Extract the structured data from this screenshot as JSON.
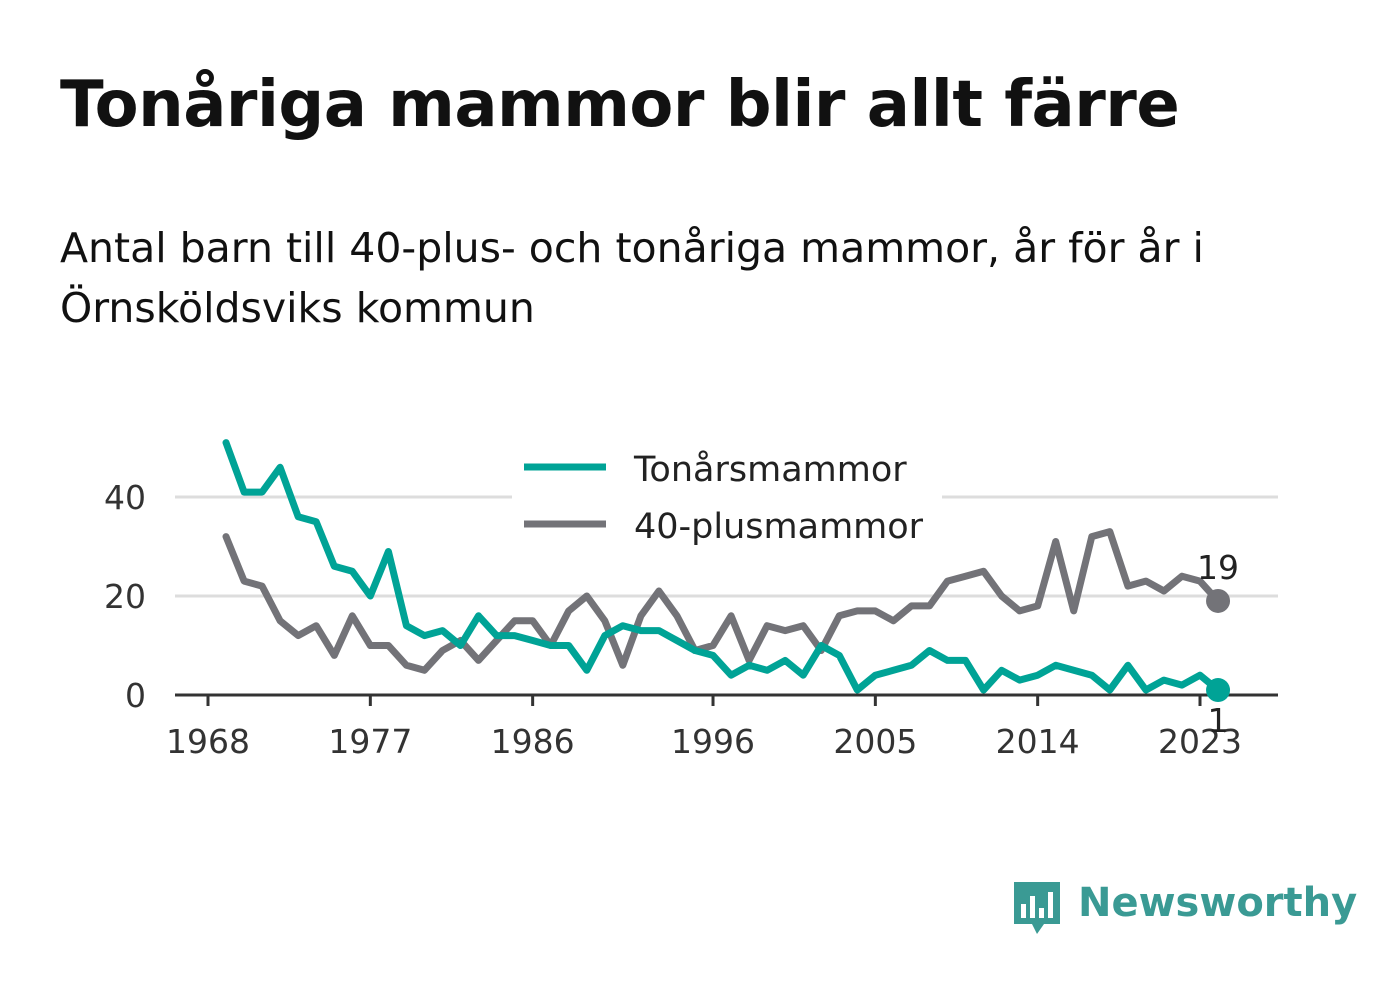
{
  "header": {
    "title": "Tonåriga mammor blir allt färre",
    "subtitle": "Antal barn till 40-plus- och tonåriga mammor, år för år i Örnsköldsviks kommun"
  },
  "brand": {
    "name": "Newsworthy",
    "color": "#3a9a94",
    "icon": "bar-chart-speech-bubble-icon"
  },
  "chart_data": {
    "type": "line",
    "title": "Tonåriga mammor blir allt färre",
    "subtitle": "Antal barn till 40-plus- och tonåriga mammor, år för år i Örnsköldsviks kommun",
    "xlabel": "",
    "ylabel": "",
    "xlim": [
      1968,
      2027
    ],
    "ylim": [
      0,
      51
    ],
    "xticks": [
      1968,
      1977,
      1986,
      1996,
      2005,
      2014,
      2023
    ],
    "yticks": [
      0,
      20,
      40
    ],
    "grid": "horizontal",
    "legend_position": "top-center",
    "x": [
      1969,
      1970,
      1971,
      1972,
      1973,
      1974,
      1975,
      1976,
      1977,
      1978,
      1979,
      1980,
      1981,
      1982,
      1983,
      1984,
      1985,
      1986,
      1987,
      1988,
      1989,
      1990,
      1991,
      1992,
      1993,
      1994,
      1995,
      1996,
      1997,
      1998,
      1999,
      2000,
      2001,
      2002,
      2003,
      2004,
      2005,
      2006,
      2007,
      2008,
      2009,
      2010,
      2011,
      2012,
      2013,
      2014,
      2015,
      2016,
      2017,
      2018,
      2019,
      2020,
      2021,
      2022,
      2023,
      2024
    ],
    "series": [
      {
        "name": "Tonårsmammor",
        "color": "#00a396",
        "values": [
          51,
          41,
          41,
          46,
          36,
          35,
          26,
          25,
          20,
          29,
          14,
          12,
          13,
          10,
          16,
          12,
          12,
          11,
          10,
          10,
          5,
          12,
          14,
          13,
          13,
          11,
          9,
          8,
          4,
          6,
          5,
          7,
          4,
          10,
          8,
          1,
          4,
          5,
          6,
          9,
          7,
          7,
          1,
          5,
          3,
          4,
          6,
          5,
          4,
          1,
          6,
          1,
          3,
          2,
          4,
          1
        ],
        "end_label": "1"
      },
      {
        "name": "40-plusmammor",
        "color": "#737378",
        "values": [
          32,
          23,
          22,
          15,
          12,
          14,
          8,
          16,
          10,
          10,
          6,
          5,
          9,
          11,
          7,
          11,
          15,
          15,
          10,
          17,
          20,
          15,
          6,
          16,
          21,
          16,
          9,
          10,
          16,
          7,
          14,
          13,
          14,
          9,
          16,
          17,
          17,
          15,
          18,
          18,
          23,
          24,
          25,
          20,
          17,
          18,
          31,
          17,
          32,
          33,
          22,
          23,
          21,
          24,
          23,
          19
        ],
        "end_label": "19"
      }
    ]
  }
}
